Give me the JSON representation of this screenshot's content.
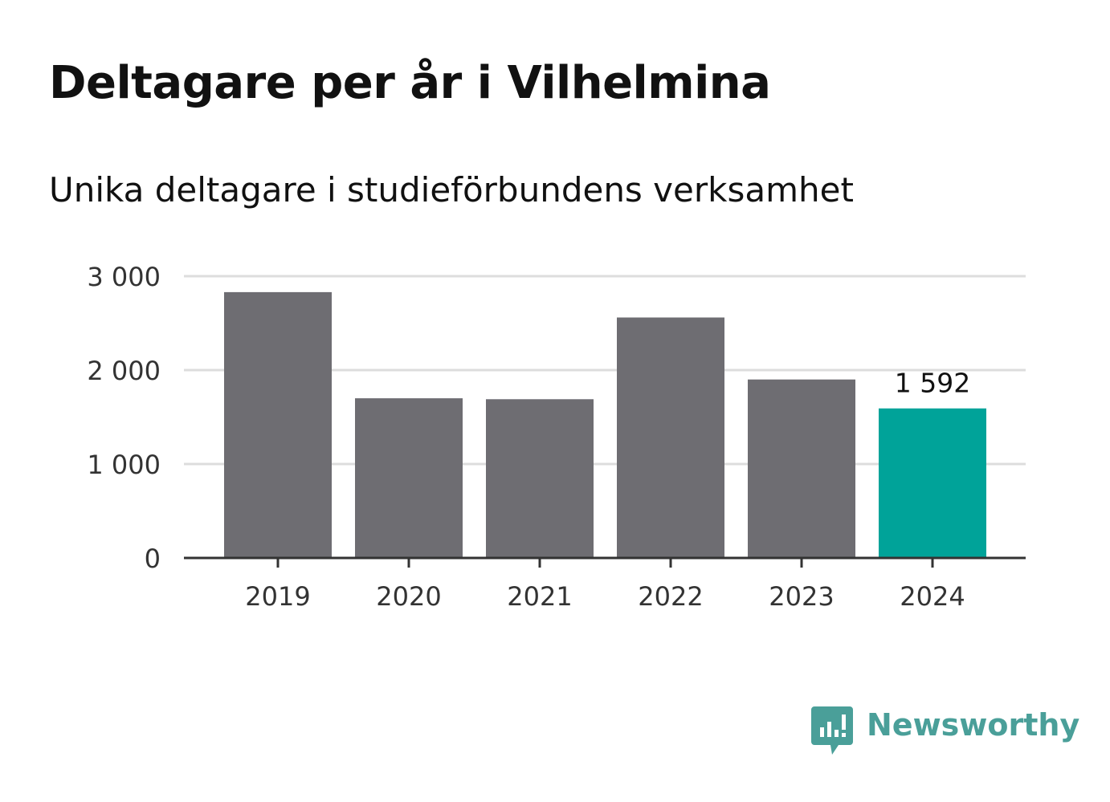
{
  "chart_data": {
    "type": "bar",
    "title": "Deltagare per år i Vilhelmina",
    "subtitle": "Unika deltagare i studieförbundens verksamhet",
    "categories": [
      "2019",
      "2020",
      "2021",
      "2022",
      "2023",
      "2024"
    ],
    "values": [
      2830,
      1700,
      1690,
      2560,
      1900,
      1592
    ],
    "ylim": [
      0,
      3000
    ],
    "yticks": [
      0,
      1000,
      2000,
      3000
    ],
    "ytick_labels": [
      "0",
      "1 000",
      "2 000",
      "3 000"
    ],
    "grid": true,
    "highlight_index": 5,
    "data_labels": [
      {
        "index": 5,
        "text": "1 592"
      }
    ],
    "colors": {
      "bar": "#6e6d72",
      "highlight": "#00a399",
      "grid": "#dddddd",
      "axis": "#333333"
    }
  },
  "logo": {
    "text": "Newsworthy",
    "color": "#4a9f99",
    "icon": "newsworthy-chart-icon"
  }
}
